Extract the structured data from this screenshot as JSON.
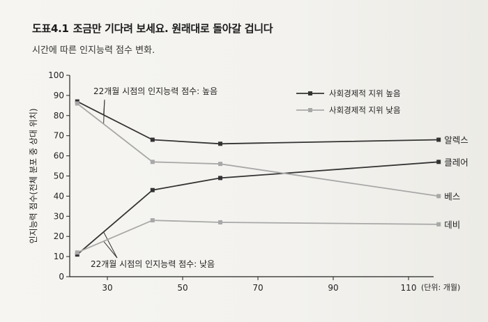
{
  "figure": {
    "number": "도표4.1",
    "title": "조금만 기다려 보세요. 원래대로 돌아갈 겁니다",
    "subtitle": "시간에 따른 인지능력 점수 변화."
  },
  "chart_data": {
    "type": "line",
    "title": "조금만 기다려 보세요. 원래대로 돌아갈 겁니다",
    "subtitle": "시간에 따른 인지능력 점수 변화.",
    "xlabel": "(단위: 개월)",
    "ylabel": "인지능력 점수(전체 분포 중 상대 위치)",
    "xlim": [
      20,
      120
    ],
    "ylim": [
      0,
      100
    ],
    "xticks": [
      30,
      50,
      70,
      90,
      110
    ],
    "yticks": [
      0,
      10,
      20,
      30,
      40,
      50,
      60,
      70,
      80,
      90,
      100
    ],
    "grid": false,
    "legend_position": "top-right",
    "legend": [
      {
        "label": "사회경제적 지위 높음",
        "color": "#333333"
      },
      {
        "label": "사회경제적 지위 낮음",
        "color": "#a8a8a8"
      }
    ],
    "series": [
      {
        "label": "알렉스",
        "group": "사회경제적 지위 높음",
        "color": "#333333",
        "x": [
          22,
          42,
          60,
          118
        ],
        "y": [
          87,
          68,
          66,
          68
        ]
      },
      {
        "label": "클레어",
        "group": "사회경제적 지위 높음",
        "color": "#333333",
        "x": [
          22,
          42,
          60,
          118
        ],
        "y": [
          11,
          43,
          49,
          57
        ]
      },
      {
        "label": "베스",
        "group": "사회경제적 지위 낮음",
        "color": "#a8a8a8",
        "x": [
          22,
          42,
          60,
          118
        ],
        "y": [
          86,
          57,
          56,
          40
        ]
      },
      {
        "label": "데비",
        "group": "사회경제적 지위 낮음",
        "color": "#a8a8a8",
        "x": [
          22,
          42,
          60,
          118
        ],
        "y": [
          12,
          28,
          27,
          26
        ]
      }
    ],
    "annotations": [
      {
        "text": "22개월 시점의 인지능력 점수: 높음",
        "x": 22,
        "y": 86.5
      },
      {
        "text": "22개월 시점의 인지능력 점수: 낮음",
        "x": 22,
        "y": 11.5
      }
    ]
  }
}
